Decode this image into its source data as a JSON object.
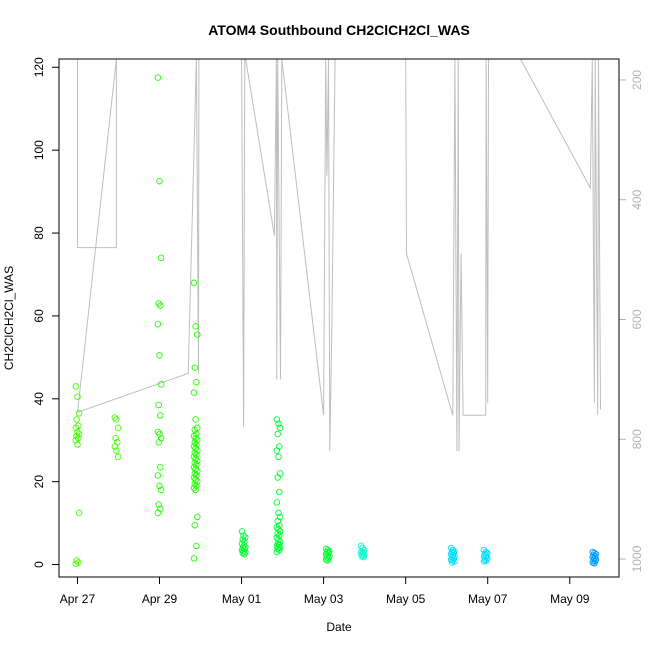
{
  "chart_data": {
    "type": "scatter",
    "title": "ATOM4 Southbound CH2ClCH2Cl_WAS",
    "xlabel": "Date",
    "ylabel": "CH2ClCH2Cl_WAS",
    "x_ticks": [
      "Apr 27",
      "Apr 29",
      "May 01",
      "May 03",
      "May 05",
      "May 07",
      "May 09"
    ],
    "x_tick_days": [
      0,
      2,
      4,
      6,
      8,
      10,
      12
    ],
    "xlim_days": [
      -0.45,
      13.2
    ],
    "y_ticks": [
      0,
      20,
      40,
      60,
      80,
      100,
      120
    ],
    "ylim": [
      -3,
      122
    ],
    "y2_ticks": [
      200,
      400,
      600,
      800,
      1000
    ],
    "y2lim": [
      1030,
      165
    ],
    "grid": false,
    "legend": "none",
    "point_colors": [
      "#44ff00",
      "#22ff00",
      "#00ff33",
      "#00ffcc",
      "#00ddff",
      "#0099ff"
    ],
    "line_color": "#bebebe",
    "series": [
      {
        "day": 0.0,
        "values": [
          43,
          40.5,
          36.5,
          35,
          33.5,
          33,
          32,
          31.5,
          31,
          30.5,
          30,
          29,
          12.5,
          1,
          0.5,
          0.2
        ]
      },
      {
        "day": 0.95,
        "values": [
          35.5,
          35,
          33,
          30.5,
          29.5,
          28.5,
          27.5,
          26
        ]
      },
      {
        "day": 2.0,
        "values": [
          117.5,
          92.5,
          74,
          63,
          62.5,
          58,
          50.5,
          43.5,
          38.5,
          36,
          32,
          31.5,
          30.5,
          29.5,
          23.5,
          21.5,
          19,
          18,
          14.5,
          13.5,
          12.5
        ]
      },
      {
        "day": 2.88,
        "values": [
          68,
          57.5,
          55.5,
          47.5,
          44,
          41.5,
          35,
          33,
          32.5,
          31.5,
          31,
          30.5,
          30,
          29.5,
          29,
          28.5,
          28,
          27.5,
          27,
          26.5,
          26,
          25.5,
          25,
          24.5,
          24,
          23.5,
          23,
          22.5,
          22,
          21.5,
          21,
          20.5,
          20,
          19.5,
          19,
          18.5,
          18,
          11.5,
          9.5,
          4.5,
          1.5
        ]
      },
      {
        "day": 4.05,
        "values": [
          8,
          7,
          6.5,
          6,
          5.5,
          5,
          4.5,
          4.2,
          4,
          3.8,
          3.5,
          3.2,
          3,
          2.8,
          2.5
        ]
      },
      {
        "day": 4.9,
        "values": [
          35,
          34,
          33,
          31.5,
          28.5,
          27.5,
          26,
          22,
          21,
          17.5,
          15,
          12.5,
          11.5,
          10.5,
          9.5,
          9,
          8.5,
          8,
          7.5,
          7,
          6.5,
          6,
          5.5,
          5,
          4.8,
          4.5,
          4.2,
          4,
          3.8,
          3.5,
          3
        ]
      },
      {
        "day": 6.1,
        "values": [
          3.8,
          3.5,
          3.2,
          3,
          2.8,
          2.5,
          2.2,
          2,
          1.8,
          1.5,
          1.2,
          1
        ]
      },
      {
        "day": 6.95,
        "values": [
          4.5,
          4,
          3.5,
          3.2,
          3,
          2.8,
          2.5,
          2.2,
          2,
          1.8
        ]
      },
      {
        "day": 9.15,
        "values": [
          4,
          3.5,
          3.2,
          3,
          2.8,
          2.5,
          2.2,
          2,
          1.8,
          1.5,
          1.2,
          1,
          0.8,
          0.5
        ]
      },
      {
        "day": 9.95,
        "values": [
          3.5,
          3,
          2.8,
          2.5,
          2.2,
          2,
          1.8,
          1.5,
          1.2,
          1,
          0.8
        ]
      },
      {
        "day": 12.6,
        "values": [
          3,
          2.8,
          2.5,
          2.2,
          2,
          1.8,
          1.5,
          1.2,
          1,
          0.8,
          0.5,
          0.3
        ]
      }
    ],
    "altitude_line": [
      [
        -0.03,
        165
      ],
      [
        0.0,
        165
      ],
      [
        0.0,
        480
      ],
      [
        0.95,
        480
      ],
      [
        0.95,
        165
      ],
      [
        0.95,
        165
      ],
      [
        0.0,
        755
      ],
      [
        2.7,
        690
      ],
      [
        2.9,
        165
      ],
      [
        2.95,
        690
      ],
      [
        2.96,
        165
      ],
      [
        3.0,
        165
      ],
      [
        3.05,
        165
      ],
      [
        3.08,
        165
      ],
      [
        4.0,
        165
      ],
      [
        4.05,
        780
      ],
      [
        4.08,
        165
      ],
      [
        4.1,
        165
      ],
      [
        4.8,
        460
      ],
      [
        4.85,
        165
      ],
      [
        4.86,
        700
      ],
      [
        4.88,
        165
      ],
      [
        4.95,
        700
      ],
      [
        4.98,
        165
      ],
      [
        6.0,
        760
      ],
      [
        6.05,
        165
      ],
      [
        6.08,
        360
      ],
      [
        6.12,
        165
      ],
      [
        6.15,
        820
      ],
      [
        6.2,
        620
      ],
      [
        6.25,
        325
      ],
      [
        6.28,
        165
      ],
      [
        8.0,
        165
      ],
      [
        8.02,
        490
      ],
      [
        9.15,
        760
      ],
      [
        9.2,
        165
      ],
      [
        9.25,
        820
      ],
      [
        9.28,
        165
      ],
      [
        9.3,
        820
      ],
      [
        9.35,
        490
      ],
      [
        9.4,
        760
      ],
      [
        9.95,
        760
      ],
      [
        9.96,
        165
      ],
      [
        10.0,
        740
      ],
      [
        10.02,
        165
      ],
      [
        10.8,
        165
      ],
      [
        12.5,
        380
      ],
      [
        12.55,
        165
      ],
      [
        12.6,
        740
      ],
      [
        12.62,
        165
      ],
      [
        12.68,
        760
      ],
      [
        12.7,
        165
      ],
      [
        12.75,
        750
      ]
    ]
  }
}
